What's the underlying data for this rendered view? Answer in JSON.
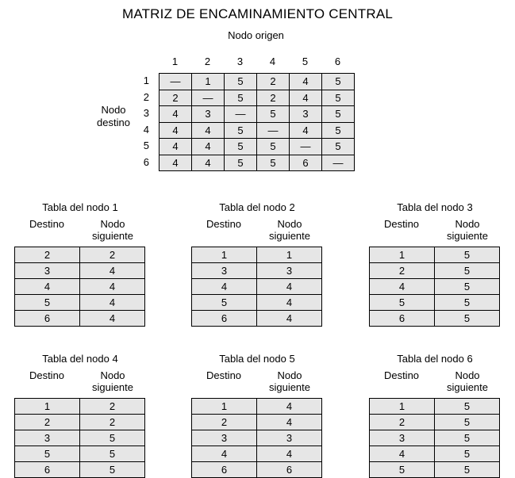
{
  "title": "MATRIZ DE ENCAMINAMIENTO CENTRAL",
  "subtitle": "Nodo origen",
  "side_label": [
    "Nodo",
    "destino"
  ],
  "column_headers": [
    "1",
    "2",
    "3",
    "4",
    "5",
    "6"
  ],
  "row_headers": [
    "1",
    "2",
    "3",
    "4",
    "5",
    "6"
  ],
  "matrix": [
    [
      "—",
      "1",
      "5",
      "2",
      "4",
      "5"
    ],
    [
      "2",
      "—",
      "5",
      "2",
      "4",
      "5"
    ],
    [
      "4",
      "3",
      "—",
      "5",
      "3",
      "5"
    ],
    [
      "4",
      "4",
      "5",
      "—",
      "4",
      "5"
    ],
    [
      "4",
      "4",
      "5",
      "5",
      "—",
      "5"
    ],
    [
      "4",
      "4",
      "5",
      "5",
      "6",
      "—"
    ]
  ],
  "table_headers": {
    "destino": "Destino",
    "siguiente": "Nodo siguiente"
  },
  "node_tables": [
    {
      "title": "Tabla del nodo 1",
      "rows": [
        [
          "2",
          "2"
        ],
        [
          "3",
          "4"
        ],
        [
          "4",
          "4"
        ],
        [
          "5",
          "4"
        ],
        [
          "6",
          "4"
        ]
      ]
    },
    {
      "title": "Tabla del nodo 2",
      "rows": [
        [
          "1",
          "1"
        ],
        [
          "3",
          "3"
        ],
        [
          "4",
          "4"
        ],
        [
          "5",
          "4"
        ],
        [
          "6",
          "4"
        ]
      ]
    },
    {
      "title": "Tabla del nodo 3",
      "rows": [
        [
          "1",
          "5"
        ],
        [
          "2",
          "5"
        ],
        [
          "4",
          "5"
        ],
        [
          "5",
          "5"
        ],
        [
          "6",
          "5"
        ]
      ]
    },
    {
      "title": "Tabla del nodo 4",
      "rows": [
        [
          "1",
          "2"
        ],
        [
          "2",
          "2"
        ],
        [
          "3",
          "5"
        ],
        [
          "5",
          "5"
        ],
        [
          "6",
          "5"
        ]
      ]
    },
    {
      "title": "Tabla del nodo 5",
      "rows": [
        [
          "1",
          "4"
        ],
        [
          "2",
          "4"
        ],
        [
          "3",
          "3"
        ],
        [
          "4",
          "4"
        ],
        [
          "6",
          "6"
        ]
      ]
    },
    {
      "title": "Tabla del nodo 6",
      "rows": [
        [
          "1",
          "5"
        ],
        [
          "2",
          "5"
        ],
        [
          "3",
          "5"
        ],
        [
          "4",
          "5"
        ],
        [
          "5",
          "5"
        ]
      ]
    }
  ]
}
